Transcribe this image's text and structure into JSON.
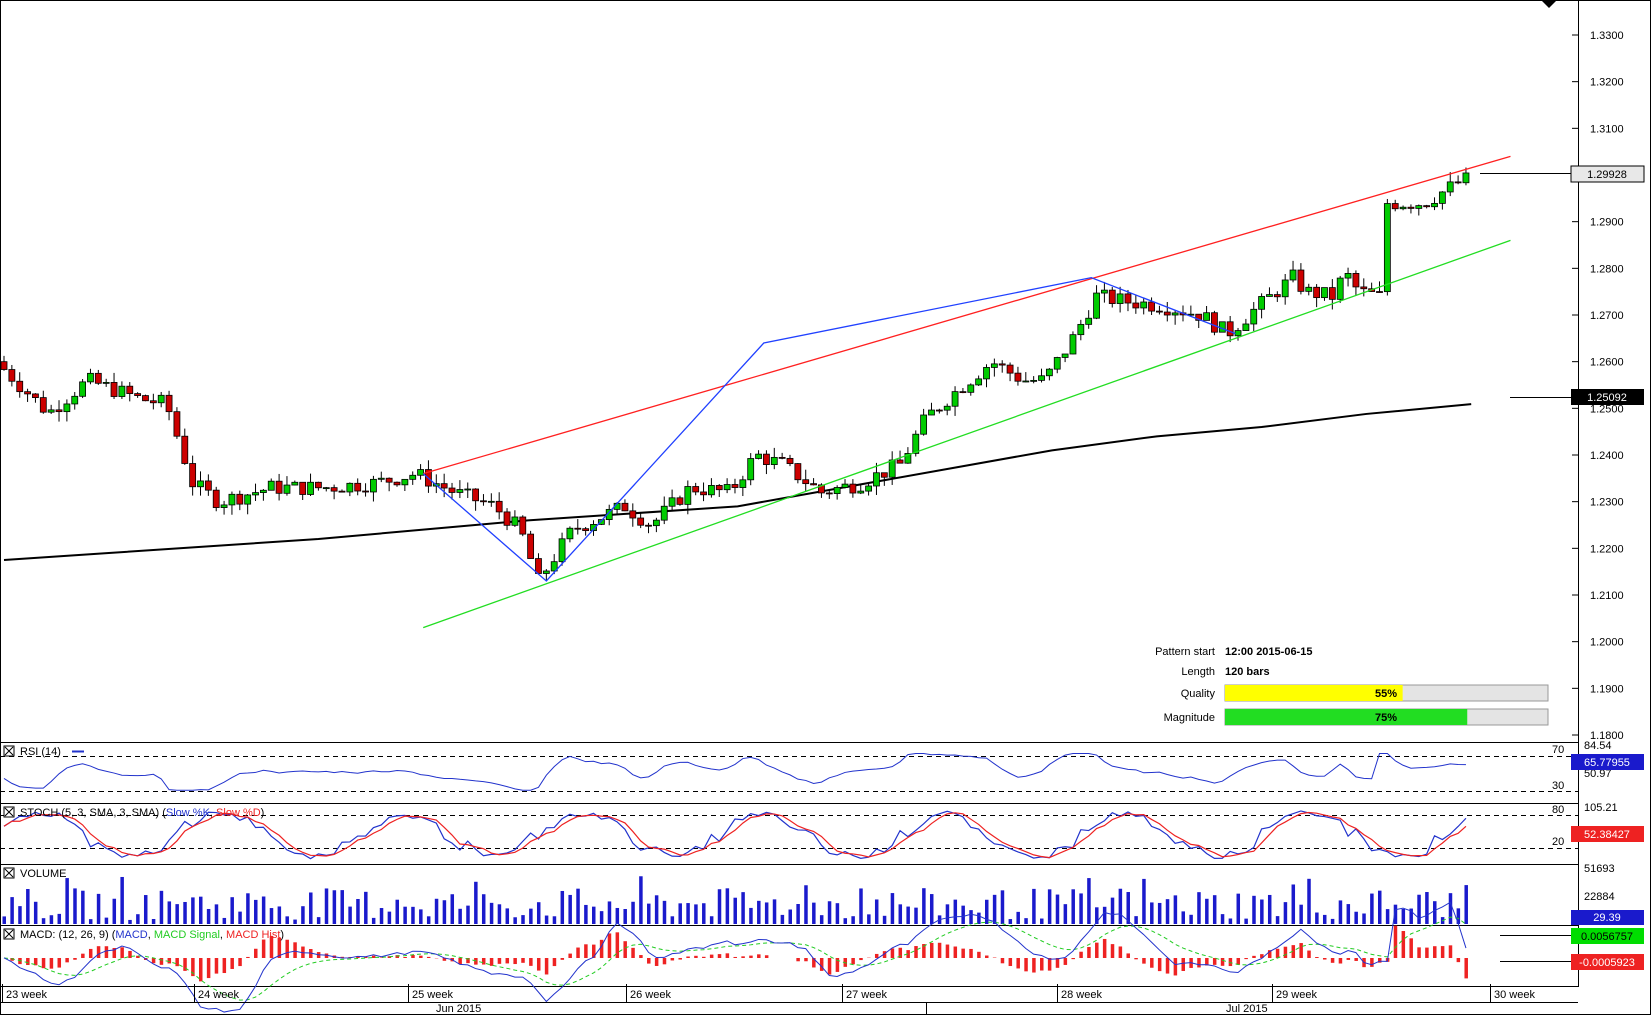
{
  "chart_data": [
    {
      "type": "candlestick",
      "panel": "price",
      "y_ticks": [
        "1.3300",
        "1.3200",
        "1.3100",
        "1.3000",
        "1.2900",
        "1.2800",
        "1.2700",
        "1.2600",
        "1.2500",
        "1.2400",
        "1.2300",
        "1.2200",
        "1.2100",
        "1.2000",
        "1.1900",
        "1.1800"
      ],
      "ylim": [
        1.1785,
        1.3375
      ],
      "last_price": "1.29928",
      "ma_value": "1.25092",
      "moving_average": [
        [
          0,
          1.2175
        ],
        [
          40,
          1.219
        ],
        [
          80,
          1.2205
        ],
        [
          120,
          1.222
        ],
        [
          160,
          1.224
        ],
        [
          200,
          1.226
        ],
        [
          240,
          1.2275
        ],
        [
          280,
          1.229
        ],
        [
          320,
          1.233
        ],
        [
          360,
          1.237
        ],
        [
          400,
          1.241
        ],
        [
          440,
          1.244
        ],
        [
          480,
          1.246
        ],
        [
          520,
          1.2488
        ],
        [
          560,
          1.2509
        ]
      ],
      "channel_upper": [
        [
          160,
          1.236
        ],
        [
          575,
          1.304
        ]
      ],
      "channel_lower": [
        [
          160,
          1.203
        ],
        [
          575,
          1.286
        ]
      ],
      "zigzag": [
        [
          160,
          1.236
        ],
        [
          207,
          1.213
        ],
        [
          290,
          1.264
        ],
        [
          415,
          1.278
        ],
        [
          470,
          1.266
        ]
      ],
      "pattern_info": {
        "pattern_start_label": "Pattern start",
        "pattern_start": "12:00 2015-06-15",
        "length_label": "Length",
        "length": "120 bars",
        "quality_label": "Quality",
        "quality": "55%",
        "quality_value": 0.55,
        "magnitude_label": "Magnitude",
        "magnitude": "75%",
        "magnitude_value": 0.75
      },
      "x_ticks": [
        "23 week",
        "24 week",
        "25 week",
        "26 week",
        "27 week",
        "28 week",
        "29 week",
        "30 week"
      ],
      "month_labels": [
        "Jun 2015",
        "Jul 2015"
      ]
    },
    {
      "type": "line",
      "panel": "rsi",
      "title": "RSI (14)",
      "levels": [
        "70",
        "30"
      ],
      "scale_labels": [
        "84.54",
        "50.97"
      ],
      "current_value": "65.77955"
    },
    {
      "type": "line",
      "panel": "stoch",
      "title_prefix": "STOCH (5, 3, SMA, 3, SMA) (",
      "series_names": [
        "Slow %K",
        "Slow %D"
      ],
      "levels": [
        "80",
        "20"
      ],
      "scale_labels": [
        "105.21"
      ],
      "current_value": "52.38427"
    },
    {
      "type": "bar",
      "panel": "volume",
      "title": "VOLUME",
      "scale_labels": [
        "51693",
        "22884"
      ],
      "current_value": "29.39"
    },
    {
      "type": "line",
      "panel": "macd",
      "title_prefix": "MACD: (12, 26, 9) (",
      "series_names": [
        "MACD",
        "MACD Signal",
        "MACD Hist"
      ],
      "macd_value": "0.0056757",
      "hist_value": "-0.0005923"
    }
  ],
  "colors": {
    "bull": "#00cc00",
    "bear": "#cc0000",
    "channel_upper": "#ff2020",
    "channel_lower": "#22dd22",
    "zigzag": "#2040ff",
    "ma": "#000000",
    "quality": "#ffff00",
    "magnitude": "#22dd22",
    "rsi": "#2233cc",
    "stoch_k": "#2233cc",
    "stoch_d": "#ee2222",
    "volume": "#1a1acc",
    "macd": "#2233cc",
    "signal": "#22cc22",
    "hist": "#ee2222",
    "macd_box": "#00dd00",
    "hist_box": "#ee2222",
    "last_box": "#e8e8e8",
    "volume_box": "#1a1acc"
  }
}
